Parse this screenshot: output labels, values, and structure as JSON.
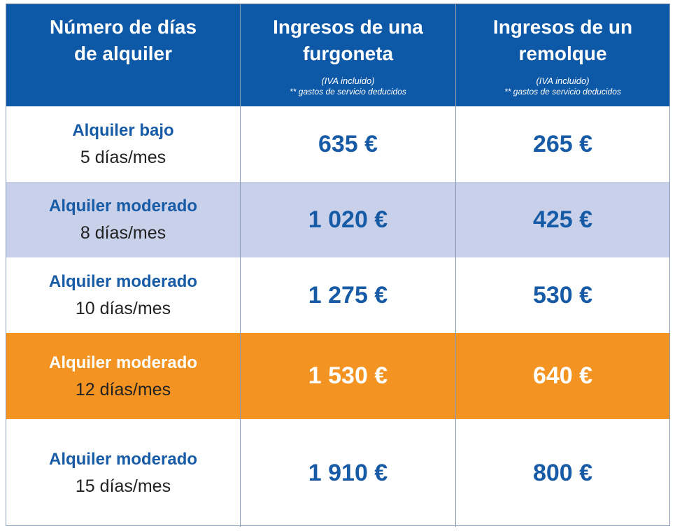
{
  "table": {
    "header": [
      {
        "title": [
          "Número de días",
          "de alquiler"
        ]
      },
      {
        "title": [
          "Ingresos de una",
          "furgoneta"
        ],
        "note": "(IVA incluido)",
        "subnote": "** gastos de servicio deducidos"
      },
      {
        "title": [
          "Ingresos de un",
          "remolque"
        ],
        "note": "(IVA incluido)",
        "subnote": "** gastos de servicio deducidos"
      }
    ],
    "rows": [
      {
        "label": "Alquiler bajo",
        "days": "5 días/mes",
        "van": "635 €",
        "trailer": "265 €"
      },
      {
        "label": "Alquiler moderado",
        "days": "8 días/mes",
        "van": "1 020 €",
        "trailer": "425 €"
      },
      {
        "label": "Alquiler moderado",
        "days": "10 días/mes",
        "van": "1 275 €",
        "trailer": "530 €"
      },
      {
        "label": "Alquiler moderado",
        "days": "12 días/mes",
        "van": "1 530 €",
        "trailer": "640 €"
      },
      {
        "label": "Alquiler moderado",
        "days": "15 días/mes",
        "van": "1 910 €",
        "trailer": "800 €"
      }
    ]
  }
}
